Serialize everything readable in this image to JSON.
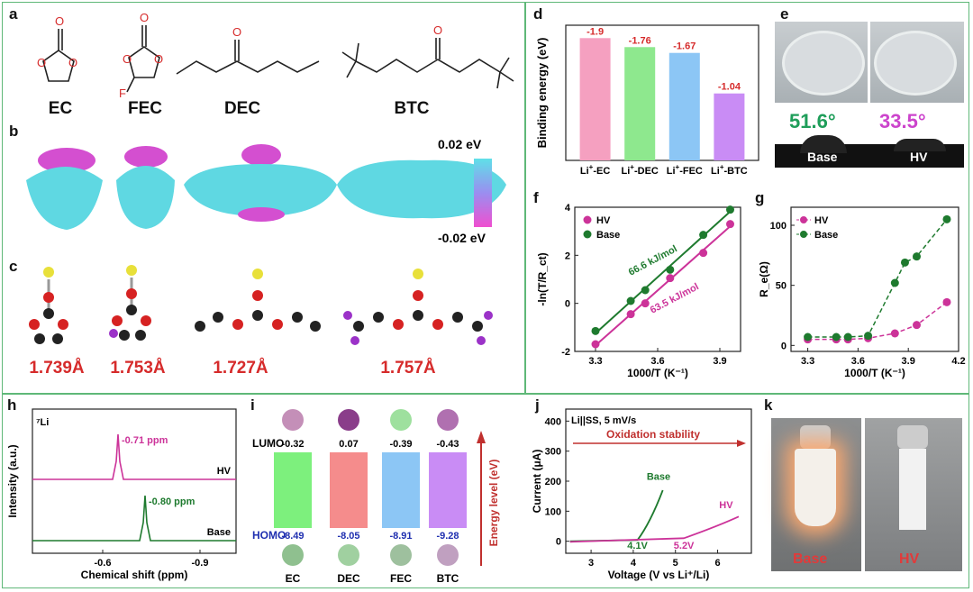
{
  "panels": {
    "a": "a",
    "b": "b",
    "c": "c",
    "d": "d",
    "e": "e",
    "f": "f",
    "g": "g",
    "h": "h",
    "i": "i",
    "j": "j",
    "k": "k"
  },
  "panel_a": {
    "molecules": [
      "EC",
      "FEC",
      "DEC",
      "BTC"
    ],
    "atom_labels": {
      "O": "O",
      "F": "F"
    }
  },
  "panel_b": {
    "scale_max": "0.02 eV",
    "scale_min": "-0.02 eV"
  },
  "panel_c": {
    "distances": [
      "1.739Å",
      "1.753Å",
      "1.727Å",
      "1.757Å"
    ]
  },
  "panel_e": {
    "angles": [
      "51.6°",
      "33.5°"
    ],
    "labels": [
      "Base",
      "HV"
    ],
    "colors": [
      "#1f9e5a",
      "#cc44cc"
    ]
  },
  "panel_k": {
    "labels": [
      "Base",
      "HV"
    ],
    "color": "#e23a3a"
  },
  "chart_data": [
    {
      "id": "d",
      "type": "bar",
      "ylabel": "Binding energy (eV)",
      "categories": [
        {
          "sup_pre": "Li",
          "sup": "+",
          "post": "-EC"
        },
        {
          "sup_pre": "Li",
          "sup": "+",
          "post": "-DEC"
        },
        {
          "sup_pre": "Li",
          "sup": "+",
          "post": "-FEC"
        },
        {
          "sup_pre": "Li",
          "sup": "+",
          "post": "-BTC"
        }
      ],
      "values": [
        -1.9,
        -1.76,
        -1.67,
        -1.04
      ],
      "value_labels": [
        "-1.9",
        "-1.76",
        "-1.67",
        "-1.04"
      ],
      "colors": [
        "#f5a0c0",
        "#8ee88e",
        "#8cc6f5",
        "#c98cf5"
      ]
    },
    {
      "id": "f",
      "type": "scatter",
      "xlabel": "1000/T (K⁻¹)",
      "ylabel": "-ln(T/R_ct)",
      "xlim": [
        3.2,
        4.0
      ],
      "ylim": [
        -2,
        4
      ],
      "xticks": [
        3.3,
        3.6,
        3.9
      ],
      "yticks": [
        -2,
        0,
        2,
        4
      ],
      "xtick_labels": [
        "3.3",
        "3.6",
        "3.9"
      ],
      "ytick_labels": [
        "-2",
        "0",
        "2",
        "4"
      ],
      "series": [
        {
          "name": "HV",
          "color": "#cc3399",
          "x": [
            3.3,
            3.47,
            3.54,
            3.66,
            3.82,
            3.95
          ],
          "y": [
            -1.7,
            -0.45,
            0.0,
            1.05,
            2.1,
            3.3
          ]
        },
        {
          "name": "Base",
          "color": "#1e7a2e",
          "x": [
            3.3,
            3.47,
            3.54,
            3.66,
            3.82,
            3.95
          ],
          "y": [
            -1.15,
            0.1,
            0.55,
            1.4,
            2.85,
            3.9
          ]
        }
      ],
      "annotations": [
        {
          "text": "66.6 kJ/mol",
          "color": "#1e7a2e"
        },
        {
          "text": "63.5 kJ/mol",
          "color": "#cc3399"
        }
      ]
    },
    {
      "id": "g",
      "type": "line",
      "xlabel": "1000/T (K⁻¹)",
      "ylabel": "R_e(Ω)",
      "xlim": [
        3.2,
        4.2
      ],
      "ylim": [
        -5,
        115
      ],
      "xticks": [
        3.3,
        3.6,
        3.9,
        4.2
      ],
      "yticks": [
        0,
        50,
        100
      ],
      "xtick_labels": [
        "3.3",
        "3.6",
        "3.9",
        "4.2"
      ],
      "ytick_labels": [
        "0",
        "50",
        "100"
      ],
      "series": [
        {
          "name": "HV",
          "color": "#cc3399",
          "x": [
            3.3,
            3.47,
            3.54,
            3.66,
            3.82,
            3.95,
            4.13
          ],
          "y": [
            5,
            5,
            5,
            6,
            10,
            17,
            36
          ]
        },
        {
          "name": "Base",
          "color": "#1e7a2e",
          "x": [
            3.3,
            3.47,
            3.54,
            3.66,
            3.82,
            3.88,
            3.95,
            4.13
          ],
          "y": [
            7,
            7,
            7,
            8,
            52,
            69,
            74,
            105
          ]
        }
      ]
    },
    {
      "id": "h",
      "type": "line",
      "xlabel": "Chemical shift (ppm)",
      "ylabel": "Intensity (a.u.)",
      "corner_label": "⁷Li",
      "xticks": [
        "-0.6",
        "-0.9"
      ],
      "series": [
        {
          "name": "HV",
          "color": "#cc3399",
          "peak": "-0.71 ppm"
        },
        {
          "name": "Base",
          "color": "#1e7a2e",
          "peak": "-0.80 ppm"
        }
      ]
    },
    {
      "id": "i",
      "type": "bar",
      "ylabel": "Energy level (eV)",
      "categories": [
        "EC",
        "DEC",
        "FEC",
        "BTC"
      ],
      "lumo_label": "LUMO",
      "homo_label": "HOMO",
      "lumo": [
        "-0.32",
        "0.07",
        "-0.39",
        "-0.43"
      ],
      "homo": [
        "-8.49",
        "-8.05",
        "-8.91",
        "-9.28"
      ],
      "colors": [
        "#7df07d",
        "#f58c8c",
        "#8cc6f5",
        "#c98cf5"
      ]
    },
    {
      "id": "j",
      "type": "line",
      "title": "Li||SS, 5 mV/s",
      "xlabel": "Voltage (V vs Li⁺/Li)",
      "ylabel": "Current (μA)",
      "xlim": [
        2.4,
        6.8
      ],
      "ylim": [
        -40,
        440
      ],
      "xticks": [
        3,
        4,
        5,
        6
      ],
      "yticks": [
        0,
        100,
        200,
        300,
        400
      ],
      "xtick_labels": [
        "3",
        "4",
        "5",
        "6"
      ],
      "ytick_labels": [
        "0",
        "100",
        "200",
        "300",
        "400"
      ],
      "arrow_label": "Oxidation stability",
      "series": [
        {
          "name": "Base",
          "color": "#1e7a2e",
          "onset": "4.1V"
        },
        {
          "name": "HV",
          "color": "#cc3399",
          "onset": "5.2V"
        }
      ]
    }
  ]
}
